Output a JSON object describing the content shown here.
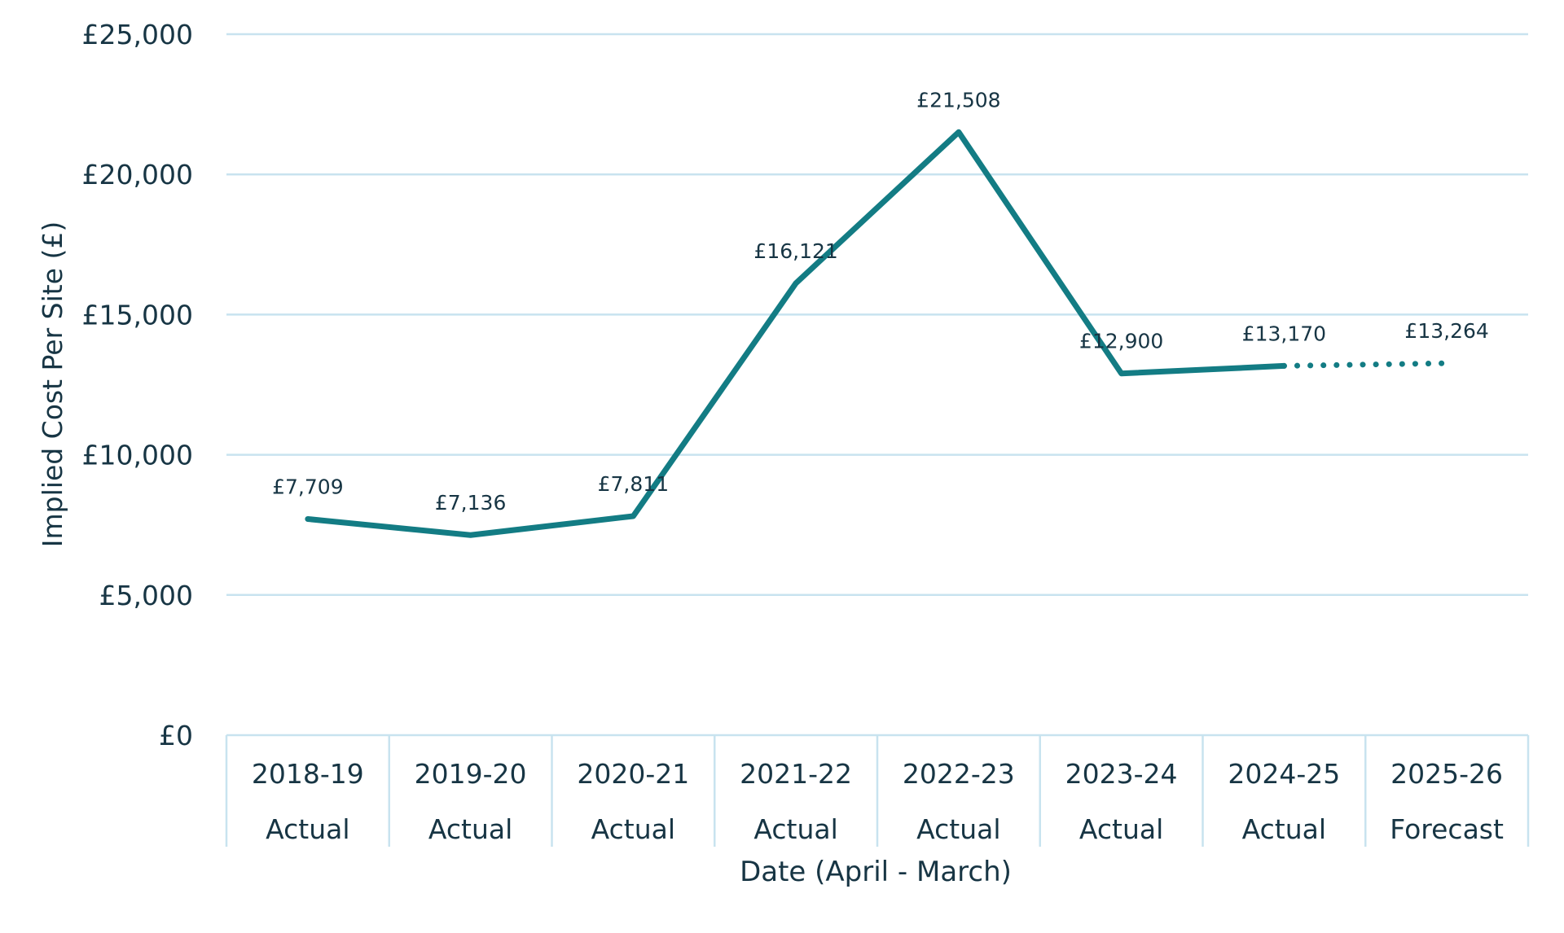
{
  "chart_data": {
    "type": "line",
    "title": "",
    "xlabel": "Date (April - March)",
    "ylabel": "Implied Cost Per Site (£)",
    "ylim": [
      0,
      25000
    ],
    "y_ticks": [
      0,
      5000,
      10000,
      15000,
      20000,
      25000
    ],
    "y_tick_labels": [
      "£0",
      "£5,000",
      "£10,000",
      "£15,000",
      "£20,000",
      "£25,000"
    ],
    "categories": [
      "2018-19",
      "2019-20",
      "2020-21",
      "2021-22",
      "2022-23",
      "2023-24",
      "2024-25",
      "2025-26"
    ],
    "category_types": [
      "Actual",
      "Actual",
      "Actual",
      "Actual",
      "Actual",
      "Actual",
      "Actual",
      "Forecast"
    ],
    "series": [
      {
        "values": [
          7709,
          7136,
          7811,
          16121,
          21508,
          12900,
          13170,
          13264
        ],
        "data_labels": [
          "£7,709",
          "£7,136",
          "£7,811",
          "£16,121",
          "£21,508",
          "£12,900",
          "£13,170",
          "£13,264"
        ],
        "line_style": "solid for Actual, dotted for Forecast"
      }
    ],
    "grid": true,
    "legend": "none",
    "colors": {
      "line": "#137c84",
      "grid": "#c8e3ef",
      "text": "#173544"
    }
  }
}
